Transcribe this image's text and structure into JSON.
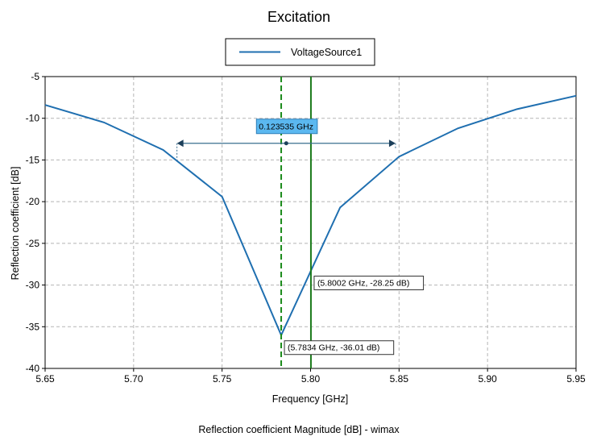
{
  "chart_data": {
    "type": "line",
    "title": "Excitation",
    "xlabel": "Frequency [GHz]",
    "ylabel": "Reflection coefficient [dB]",
    "caption": "Reflection coefficient Magnitude [dB] - wimax",
    "xlim": [
      5.65,
      5.95
    ],
    "ylim": [
      -40,
      -5
    ],
    "xticks": [
      5.65,
      5.7,
      5.75,
      5.8,
      5.85,
      5.9,
      5.95
    ],
    "xtick_labels": [
      "5.65",
      "5.70",
      "5.75",
      "5.80",
      "5.85",
      "5.90",
      "5.95"
    ],
    "yticks": [
      -5,
      -10,
      -15,
      -20,
      -25,
      -30,
      -35,
      -40
    ],
    "ytick_labels": [
      "-5",
      "-10",
      "-15",
      "-20",
      "-25",
      "-30",
      "-35",
      "-40"
    ],
    "grid": true,
    "legend": "top-center",
    "series": [
      {
        "name": "VoltageSource1",
        "color": "#1f6fb0",
        "x": [
          5.65,
          5.6833,
          5.7167,
          5.75,
          5.7834,
          5.8167,
          5.85,
          5.8833,
          5.9167,
          5.95
        ],
        "y": [
          -8.4,
          -10.5,
          -13.8,
          -19.4,
          -36.01,
          -20.7,
          -14.6,
          -11.2,
          -8.9,
          -7.3
        ]
      }
    ],
    "markers": [
      {
        "name": "min-marker",
        "x": 5.7834,
        "color": "#1a8a1a",
        "style": "dashed",
        "label": "(5.7834 GHz, -36.01 dB)",
        "point_y": -36.01
      },
      {
        "name": "cursor-marker",
        "x": 5.8002,
        "color": "#1a7a1a",
        "style": "solid",
        "label": "(5.8002 GHz, -28.25 dB)",
        "point_y": -28.25
      }
    ],
    "bandwidth": {
      "label": "0.123535 GHz",
      "x_start": 5.7245,
      "x_end": 5.848,
      "y": -13.0,
      "color": "#3a6f8f",
      "label_bg": "#5bb8f0"
    }
  }
}
